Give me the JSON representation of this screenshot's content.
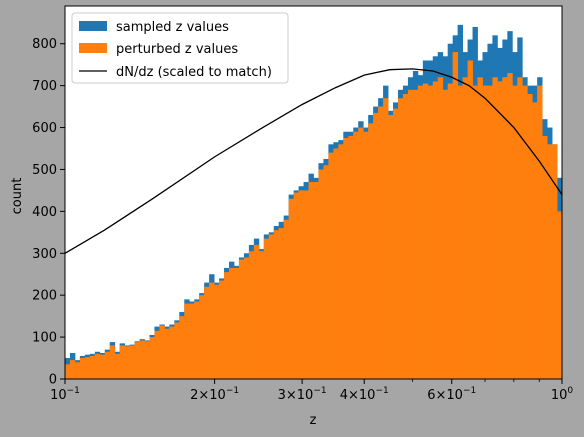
{
  "chart_data": {
    "type": "bar",
    "title": "",
    "xlabel": "z",
    "ylabel": "count",
    "xscale": "log",
    "xlim": [
      0.1,
      1.0
    ],
    "ylim": [
      0,
      890
    ],
    "grid": false,
    "legend_placement": "top-left",
    "x_ticks": [
      {
        "value": 0.1,
        "label": "10",
        "exp": "−1"
      },
      {
        "value": 0.2,
        "label": "2×10",
        "exp": "−1"
      },
      {
        "value": 0.3,
        "label": "3×10",
        "exp": "−1"
      },
      {
        "value": 0.4,
        "label": "4×10",
        "exp": "−1"
      },
      {
        "value": 0.6,
        "label": "6×10",
        "exp": "−1"
      },
      {
        "value": 1.0,
        "label": "10",
        "exp": "0"
      }
    ],
    "x_minor_ticks": [
      0.5,
      0.7,
      0.8,
      0.9
    ],
    "y_ticks": [
      0,
      100,
      200,
      300,
      400,
      500,
      600,
      700,
      800
    ],
    "bins": {
      "count": 100,
      "range": [
        0.1,
        1.0
      ],
      "spacing": "log"
    },
    "series": [
      {
        "name": "sampled z values",
        "color": "#1f77b4",
        "values": [
          50,
          62,
          45,
          55,
          58,
          60,
          65,
          62,
          70,
          88,
          65,
          85,
          80,
          82,
          90,
          95,
          92,
          105,
          125,
          130,
          125,
          130,
          140,
          160,
          190,
          185,
          190,
          205,
          230,
          250,
          230,
          240,
          265,
          280,
          270,
          290,
          300,
          320,
          335,
          310,
          345,
          350,
          365,
          375,
          390,
          440,
          450,
          460,
          470,
          490,
          480,
          515,
          525,
          560,
          565,
          570,
          590,
          590,
          600,
          615,
          600,
          630,
          650,
          670,
          700,
          640,
          660,
          690,
          700,
          720,
          735,
          725,
          760,
          760,
          770,
          780,
          770,
          800,
          820,
          845,
          780,
          810,
          840,
          760,
          780,
          800,
          820,
          790,
          810,
          830,
          780,
          815,
          720,
          700,
          700,
          720,
          620,
          600,
          560,
          480
        ]
      },
      {
        "name": "perturbed z values",
        "color": "#ff7f0e",
        "values": [
          35,
          45,
          40,
          50,
          52,
          55,
          60,
          58,
          65,
          80,
          60,
          80,
          78,
          80,
          88,
          92,
          90,
          100,
          115,
          128,
          120,
          125,
          135,
          150,
          180,
          180,
          185,
          200,
          220,
          230,
          225,
          235,
          255,
          265,
          265,
          285,
          290,
          305,
          320,
          305,
          335,
          345,
          355,
          360,
          380,
          430,
          445,
          450,
          450,
          470,
          470,
          500,
          510,
          540,
          550,
          560,
          575,
          580,
          590,
          600,
          590,
          610,
          635,
          650,
          670,
          630,
          645,
          670,
          680,
          690,
          690,
          700,
          705,
          700,
          710,
          720,
          690,
          705,
          780,
          700,
          720,
          760,
          700,
          720,
          700,
          700,
          720,
          710,
          720,
          730,
          700,
          720,
          700,
          680,
          660,
          700,
          580,
          560,
          560,
          400
        ]
      }
    ],
    "curve": {
      "name": "dN/dz (scaled to match)",
      "color": "#000000",
      "x": [
        0.1,
        0.12,
        0.15,
        0.2,
        0.25,
        0.3,
        0.35,
        0.4,
        0.45,
        0.5,
        0.55,
        0.6,
        0.65,
        0.7,
        0.8,
        0.9,
        1.0
      ],
      "y": [
        300,
        355,
        430,
        530,
        600,
        655,
        695,
        725,
        738,
        740,
        735,
        720,
        700,
        670,
        600,
        520,
        440
      ]
    }
  }
}
